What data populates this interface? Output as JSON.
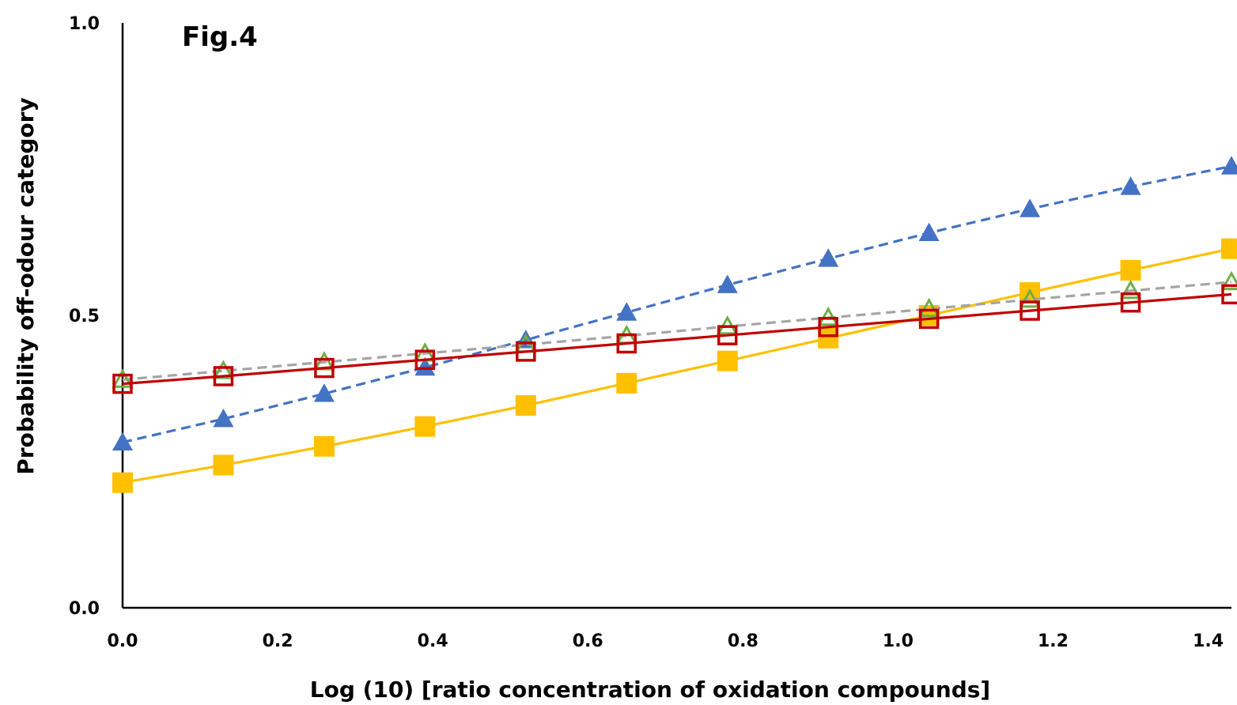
{
  "chart_data": {
    "type": "line",
    "title": "Fig.4",
    "xlabel": "Log (10) [ratio concentration of oxidation compounds]",
    "ylabel": "Probability off-odour category",
    "xlim": [
      0,
      1.43
    ],
    "ylim": [
      0,
      1.0
    ],
    "x_ticks": [
      "0.0",
      "0.2",
      "0.4",
      "0.6",
      "0.8",
      "1.0",
      "1.2",
      "1.4"
    ],
    "x_tick_values": [
      0,
      0.2,
      0.4,
      0.6,
      0.8,
      1.0,
      1.2,
      1.4
    ],
    "y_ticks": [
      "0.0",
      "0.5",
      "1.0"
    ],
    "y_tick_values": [
      0,
      0.5,
      1.0
    ],
    "grid": false,
    "legend": "none",
    "x": [
      0.0,
      0.13,
      0.26,
      0.39,
      0.52,
      0.65,
      0.78,
      0.91,
      1.04,
      1.17,
      1.3,
      1.43
    ],
    "series": [
      {
        "color": "#4472C4",
        "marker": "triangle-filled",
        "line": "dashed",
        "values": [
          0.283,
          0.323,
          0.366,
          0.411,
          0.458,
          0.505,
          0.552,
          0.597,
          0.641,
          0.682,
          0.72,
          0.755
        ]
      },
      {
        "color": "#FFC000",
        "marker": "square-filled",
        "line": "solid",
        "values": [
          0.214,
          0.244,
          0.276,
          0.31,
          0.346,
          0.384,
          0.422,
          0.461,
          0.5,
          0.539,
          0.577,
          0.614
        ]
      },
      {
        "color": "#70AD47",
        "line_color": "#A5A5A5",
        "marker": "triangle-open",
        "line": "dashed",
        "values": [
          0.39,
          0.405,
          0.42,
          0.435,
          0.45,
          0.465,
          0.481,
          0.496,
          0.511,
          0.527,
          0.542,
          0.557
        ]
      },
      {
        "color": "#C00000",
        "marker": "square-open",
        "line": "solid",
        "values": [
          0.383,
          0.396,
          0.41,
          0.424,
          0.438,
          0.452,
          0.466,
          0.48,
          0.494,
          0.508,
          0.522,
          0.536
        ]
      }
    ]
  }
}
